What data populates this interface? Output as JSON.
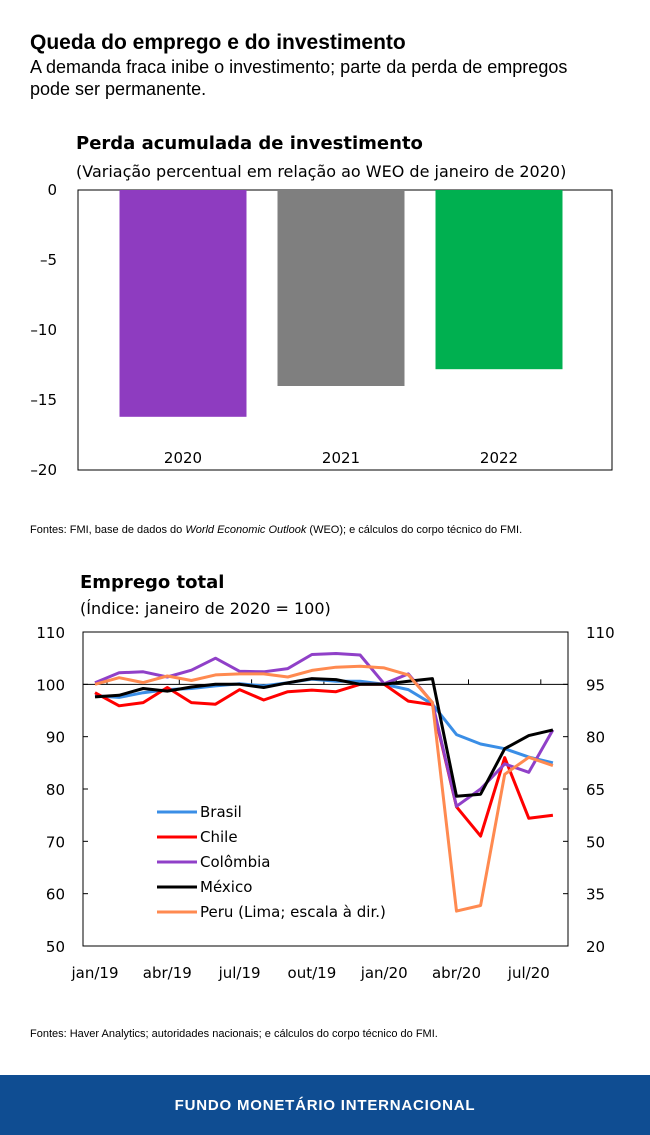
{
  "header": {
    "title": "Queda do emprego e do investimento",
    "subtitle": "A demanda fraca inibe o investimento; parte da perda de empregos pode ser permanente."
  },
  "chart_data": [
    {
      "type": "bar",
      "title": "Perda acumulada de investimento",
      "subtitle": "(Variação percentual em relação ao WEO de janeiro de 2020)",
      "categories": [
        "2020",
        "2021",
        "2022"
      ],
      "values": [
        -16.2,
        -14.0,
        -12.8
      ],
      "colors": [
        "#8e3cc0",
        "#7f7f7f",
        "#00b050"
      ],
      "ylim": [
        -20,
        0
      ],
      "yticks": [
        "0",
        "–5",
        "–10",
        "–15",
        "–20"
      ],
      "ytick_values": [
        0,
        -5,
        -10,
        -15,
        -20
      ],
      "grid": false
    },
    {
      "type": "line",
      "title": "Emprego total",
      "subtitle": "(Índice: janeiro de 2020 = 100)",
      "xticks": [
        "jan/19",
        "abr/19",
        "jul/19",
        "out/19",
        "jan/20",
        "abr/20",
        "jul/20"
      ],
      "x": [
        "jan/19",
        "fev/19",
        "mar/19",
        "abr/19",
        "mai/19",
        "jun/19",
        "jul/19",
        "ago/19",
        "set/19",
        "out/19",
        "nov/19",
        "dez/19",
        "jan/20",
        "fev/20",
        "mar/20",
        "abr/20",
        "mai/20",
        "jun/20",
        "jul/20",
        "ago/20"
      ],
      "ylim_left": [
        50,
        110
      ],
      "yticks_left": [
        "110",
        "100",
        "90",
        "80",
        "70",
        "60",
        "50"
      ],
      "ylim_right": [
        20,
        110
      ],
      "yticks_right": [
        "110",
        "95",
        "80",
        "65",
        "50",
        "35",
        "20"
      ],
      "legend_placement": "bottom-left",
      "grid": false,
      "series": [
        {
          "name": "Brasil",
          "color": "#3a8ee6",
          "axis": "left",
          "values": [
            97.8,
            97.5,
            98.4,
            99.0,
            99.2,
            99.7,
            100.1,
            99.7,
            100.3,
            101.0,
            100.6,
            100.6,
            100.0,
            99.0,
            96.2,
            90.4,
            88.6,
            87.7,
            86.1,
            85.0
          ]
        },
        {
          "name": "Chile",
          "color": "#ff0000",
          "axis": "left",
          "values": [
            98.4,
            95.9,
            96.5,
            99.4,
            96.5,
            96.2,
            99.0,
            97.0,
            98.6,
            98.9,
            98.6,
            100.0,
            100.0,
            96.8,
            96.1,
            76.6,
            71.0,
            86.0,
            74.4,
            75.0
          ]
        },
        {
          "name": "Colômbia",
          "color": "#9040c8",
          "axis": "left",
          "values": [
            100.3,
            102.2,
            102.4,
            101.4,
            102.7,
            105.0,
            102.5,
            102.4,
            103.0,
            105.7,
            105.9,
            105.6,
            100.1,
            102.0,
            96.5,
            76.7,
            80.0,
            84.8,
            83.2,
            91.3
          ]
        },
        {
          "name": "México",
          "color": "#000000",
          "axis": "left",
          "values": [
            97.6,
            97.9,
            99.2,
            98.7,
            99.5,
            100.0,
            100.0,
            99.4,
            100.3,
            101.1,
            100.9,
            100.0,
            100.0,
            100.6,
            101.1,
            78.6,
            79.0,
            87.7,
            90.2,
            91.3
          ]
        },
        {
          "name": "Peru (Lima; escala à dir.)",
          "color": "#ff8a50",
          "axis": "right",
          "values": [
            95.0,
            96.9,
            95.5,
            97.4,
            96.1,
            97.7,
            98.0,
            98.0,
            97.1,
            99.0,
            99.9,
            100.2,
            99.7,
            97.7,
            89.8,
            30.0,
            31.6,
            69.2,
            74.1,
            71.7
          ]
        }
      ]
    }
  ],
  "sources": {
    "chart1_prefix": "Fontes: FMI, base de dados do ",
    "chart1_italic": "World Economic Outlook",
    "chart1_suffix": " (WEO); e cálculos do corpo técnico do FMI.",
    "chart2": "Fontes: Haver Analytics; autoridades nacionais; e cálculos do corpo técnico do FMI."
  },
  "footer": {
    "label": "FUNDO MONETÁRIO INTERNACIONAL"
  }
}
